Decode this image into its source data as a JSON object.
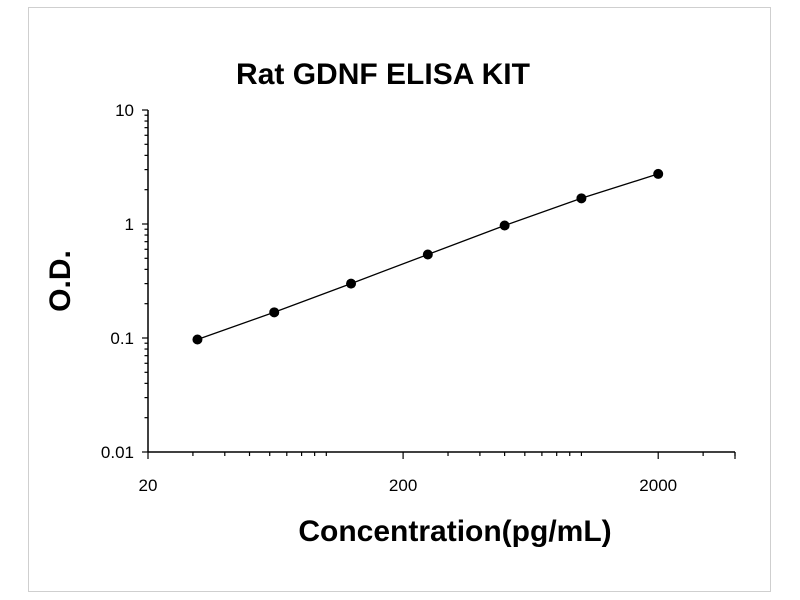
{
  "chart_data": {
    "type": "scatter",
    "title": "Rat GDNF ELISA KIT",
    "xlabel": "Concentration(pg/mL)",
    "ylabel": "O.D.",
    "xscale": "log",
    "yscale": "log",
    "xlim": [
      20,
      4000
    ],
    "ylim": [
      0.01,
      10
    ],
    "xticks": [
      20,
      200,
      2000
    ],
    "xtick_labels": [
      "20",
      "200",
      "2000"
    ],
    "yticks": [
      10,
      1,
      0.1,
      0.01
    ],
    "ytick_labels": [
      "10",
      "1",
      "0.1",
      "0.01"
    ],
    "grid": false,
    "legend": "none",
    "series": [
      {
        "x": [
          31.25,
          62.5,
          125,
          250,
          500,
          1000,
          2000
        ],
        "y": [
          0.097,
          0.168,
          0.3,
          0.54,
          0.97,
          1.68,
          2.75
        ],
        "line": true,
        "marker": "circle",
        "color": "#000000"
      }
    ]
  }
}
